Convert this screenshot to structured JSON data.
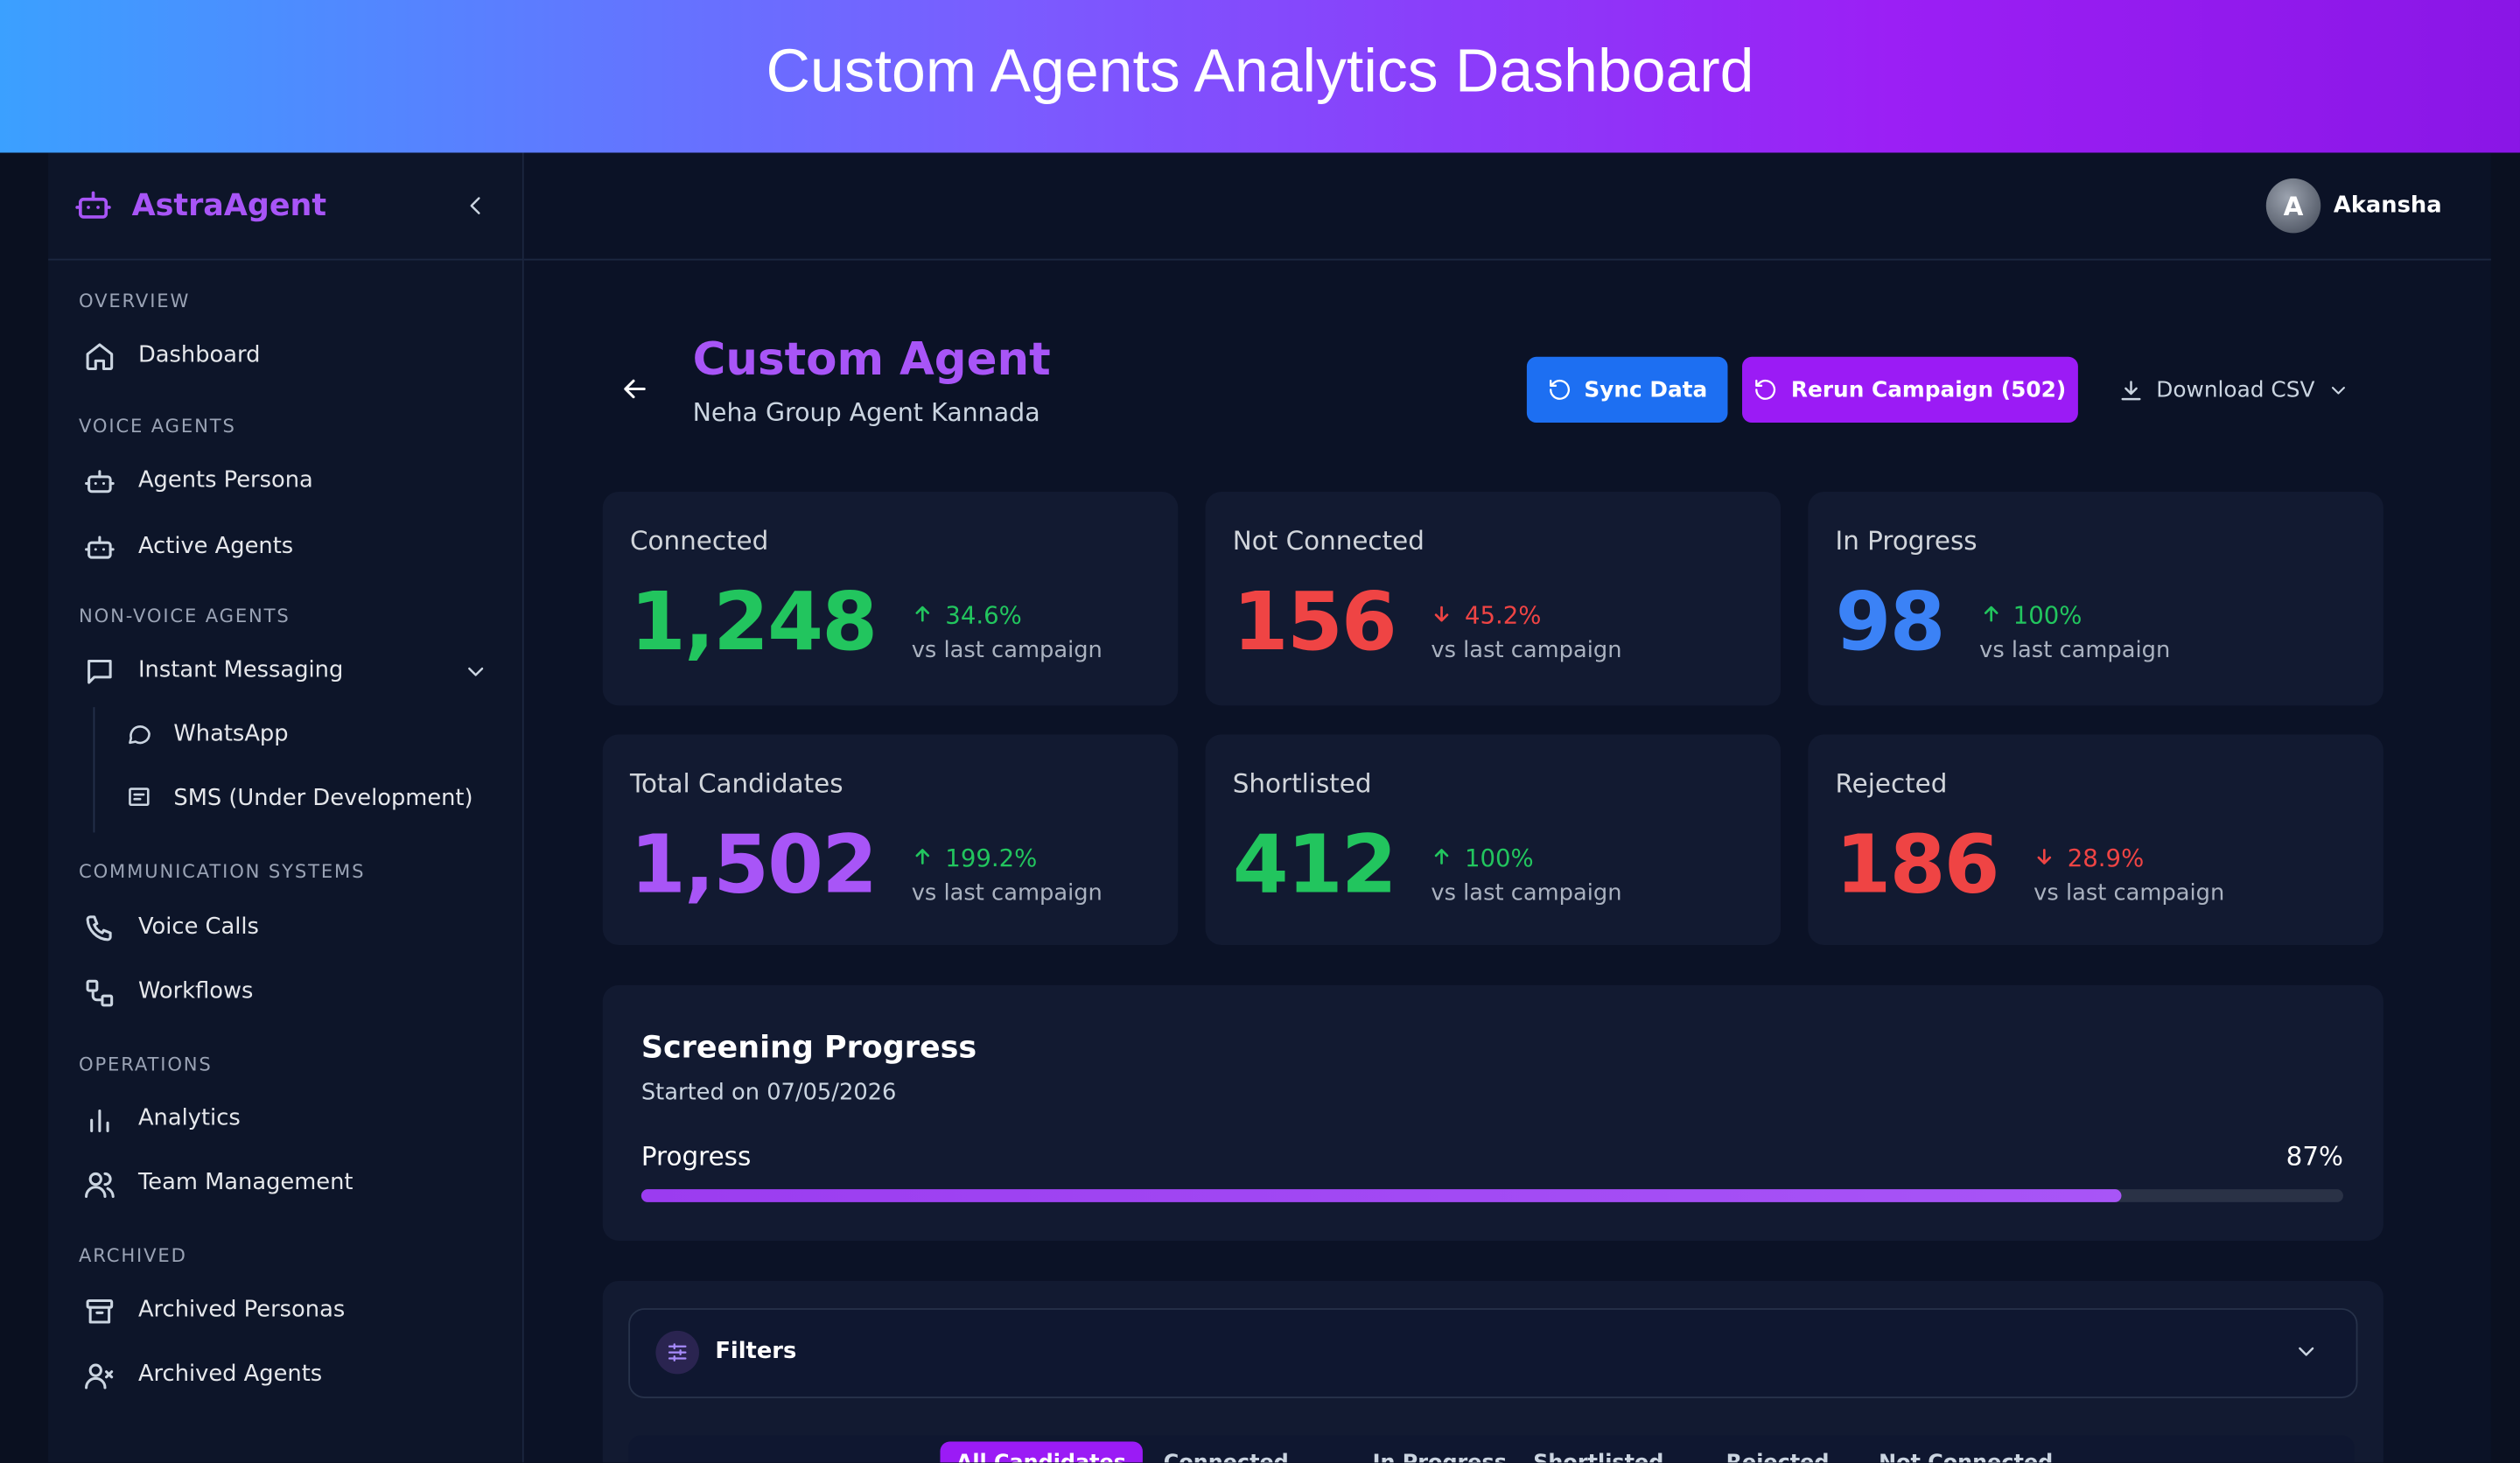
{
  "header": {
    "title": "Custom Agents Analytics Dashboard"
  },
  "sidebar": {
    "brand": "AstraAgent",
    "sections": [
      {
        "label": "OVERVIEW",
        "items": [
          {
            "label": "Dashboard",
            "icon": "home"
          }
        ]
      },
      {
        "label": "VOICE AGENTS",
        "items": [
          {
            "label": "Agents Persona",
            "icon": "bot"
          },
          {
            "label": "Active Agents",
            "icon": "bot"
          }
        ]
      },
      {
        "label": "NON-VOICE AGENTS",
        "items": [
          {
            "label": "Instant Messaging",
            "icon": "msg",
            "expand": true
          },
          {
            "label": "WhatsApp",
            "icon": "bubble",
            "sub": true
          },
          {
            "label": "SMS (Under Development)",
            "icon": "sms",
            "sub": true
          }
        ]
      },
      {
        "label": "COMMUNICATION SYSTEMS",
        "items": [
          {
            "label": "Voice Calls",
            "icon": "phone"
          },
          {
            "label": "Workflows",
            "icon": "flow"
          }
        ]
      },
      {
        "label": "OPERATIONS",
        "items": [
          {
            "label": "Analytics",
            "icon": "chart"
          },
          {
            "label": "Team Management",
            "icon": "users"
          }
        ]
      },
      {
        "label": "ARCHIVED",
        "items": [
          {
            "label": "Archived Personas",
            "icon": "archive"
          },
          {
            "label": "Archived Agents",
            "icon": "userx"
          }
        ]
      }
    ]
  },
  "user": {
    "initial": "A",
    "name": "Akansha"
  },
  "page": {
    "title": "Custom Agent",
    "subtitle": "Neha Group Agent Kannada",
    "buttons": [
      "Sync Data",
      "Rerun Campaign (502)",
      "Download CSV"
    ]
  },
  "stats": [
    {
      "label": "Connected",
      "value": "1,248",
      "change": "34.6%",
      "direction": "up",
      "note": "vs last campaign",
      "color": "#22c55e"
    },
    {
      "label": "Not Connected",
      "value": "156",
      "change": "45.2%",
      "direction": "down",
      "note": "vs last campaign",
      "color": "#ef4444"
    },
    {
      "label": "In Progress",
      "value": "98",
      "change": "100%",
      "direction": "up",
      "note": "vs last campaign",
      "color": "#3b82f6"
    },
    {
      "label": "Total Candidates",
      "value": "1,502",
      "change": "199.2%",
      "direction": "up",
      "note": "vs last campaign",
      "color": "#a855f7"
    },
    {
      "label": "Shortlisted",
      "value": "412",
      "change": "100%",
      "direction": "up",
      "note": "vs last campaign",
      "color": "#22c55e"
    },
    {
      "label": "Rejected",
      "value": "186",
      "change": "28.9%",
      "direction": "down",
      "note": "vs last campaign",
      "color": "#ef4444"
    }
  ],
  "screening": {
    "title": "Screening Progress",
    "started": "Started on 07/05/2026",
    "progress_label": "Progress",
    "value": 87,
    "value_label": "87%"
  },
  "filters": {
    "label": "Filters",
    "tabs": [
      "All Candidates",
      "Connected",
      "In Progress",
      "Shortlisted",
      "Rejected",
      "Not Connected"
    ]
  }
}
